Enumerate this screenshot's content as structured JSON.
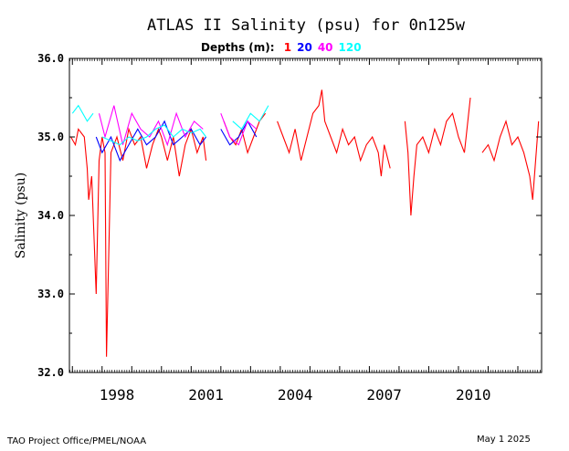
{
  "footer": {
    "left": "TAO Project Office/PMEL/NOAA",
    "right": "May  1 2025"
  },
  "chart_data": {
    "type": "line",
    "title": "ATLAS II Salinity (psu) for 0n125w",
    "legend_prefix": "Depths (m):",
    "ylabel": "Salinity (psu)",
    "xlabel": "",
    "ylim": [
      32.0,
      36.0
    ],
    "xlim": [
      1996.9,
      2012.8
    ],
    "x_ticks": [
      "1998",
      "2001",
      "2004",
      "2007",
      "2010"
    ],
    "y_ticks": [
      "36.0",
      "35.0",
      "34.0",
      "33.0",
      "32.0"
    ],
    "grid": false,
    "legend_position": "top-center",
    "series": [
      {
        "name": "1",
        "color": "#ff0000",
        "x": [
          1996.95,
          1997.1,
          1997.2,
          1997.4,
          1997.5,
          1997.55,
          1997.65,
          1997.8,
          1997.9,
          1998.0,
          1998.1,
          1998.15,
          1998.3,
          1998.5,
          1998.7,
          1998.9,
          1999.1,
          1999.3,
          1999.5,
          1999.7,
          1999.9,
          2000.0,
          2000.2,
          2000.4,
          2000.6,
          2000.8,
          2001.0,
          2001.2,
          2001.4,
          2001.5,
          null,
          2002.1,
          2002.3,
          2002.5,
          2002.7,
          2002.9,
          2003.1,
          2003.3,
          2003.5,
          null,
          2003.9,
          2004.1,
          2004.3,
          2004.5,
          2004.7,
          2004.9,
          2005.1,
          2005.3,
          2005.4,
          2005.5,
          2005.7,
          2005.9,
          2006.1,
          2006.3,
          2006.5,
          2006.7,
          2006.9,
          2007.1,
          2007.3,
          2007.4,
          2007.5,
          2007.7,
          null,
          2008.2,
          2008.3,
          2008.4,
          2008.5,
          2008.6,
          2008.8,
          2009.0,
          2009.2,
          2009.4,
          2009.6,
          2009.8,
          2010.0,
          2010.2,
          2010.4,
          null,
          2010.8,
          2011.0,
          2011.2,
          2011.4,
          2011.6,
          2011.8,
          2012.0,
          2012.2,
          2012.4,
          2012.5,
          2012.7
        ],
        "y": [
          35.0,
          34.9,
          35.1,
          35.0,
          34.6,
          34.2,
          34.5,
          33.0,
          34.7,
          35.0,
          34.8,
          32.2,
          34.8,
          35.0,
          34.7,
          35.1,
          34.9,
          35.0,
          34.6,
          34.9,
          35.1,
          35.0,
          34.7,
          35.0,
          34.5,
          34.9,
          35.1,
          34.8,
          35.0,
          34.7,
          null,
          35.2,
          35.0,
          34.9,
          35.1,
          34.8,
          35.0,
          35.2,
          35.3,
          null,
          35.2,
          35.0,
          34.8,
          35.1,
          34.7,
          35.0,
          35.3,
          35.4,
          35.6,
          35.2,
          35.0,
          34.8,
          35.1,
          34.9,
          35.0,
          34.7,
          34.9,
          35.0,
          34.8,
          34.5,
          34.9,
          34.6,
          null,
          35.2,
          34.8,
          34.0,
          34.5,
          34.9,
          35.0,
          34.8,
          35.1,
          34.9,
          35.2,
          35.3,
          35.0,
          34.8,
          35.5,
          null,
          34.8,
          34.9,
          34.7,
          35.0,
          35.2,
          34.9,
          35.0,
          34.8,
          34.5,
          34.2,
          35.2
        ]
      },
      {
        "name": "20",
        "color": "#0000ff",
        "x": [
          1997.8,
          1998.0,
          1998.3,
          1998.6,
          1998.9,
          1999.2,
          1999.5,
          1999.8,
          2000.1,
          2000.4,
          2000.7,
          2001.0,
          2001.3,
          2001.5,
          null,
          2002.0,
          2002.3,
          2002.6,
          2002.9,
          2003.2
        ],
        "y": [
          35.0,
          34.8,
          35.0,
          34.7,
          34.9,
          35.1,
          34.9,
          35.0,
          35.2,
          34.9,
          35.0,
          35.1,
          34.9,
          35.0,
          null,
          35.1,
          34.9,
          35.0,
          35.2,
          35.0
        ]
      },
      {
        "name": "40",
        "color": "#ff00ff",
        "x": [
          1997.9,
          1998.1,
          1998.4,
          1998.7,
          1999.0,
          1999.3,
          1999.6,
          1999.9,
          2000.2,
          2000.5,
          2000.8,
          2001.1,
          2001.4,
          null,
          2002.0,
          2002.3,
          2002.6,
          2002.9,
          2003.2
        ],
        "y": [
          35.3,
          35.0,
          35.4,
          34.9,
          35.3,
          35.1,
          35.0,
          35.2,
          34.9,
          35.3,
          35.0,
          35.2,
          35.1,
          null,
          35.3,
          35.0,
          34.9,
          35.2,
          35.1
        ]
      },
      {
        "name": "120",
        "color": "#00ffff",
        "x": [
          1997.0,
          1997.2,
          1997.5,
          1997.7,
          null,
          1998.0,
          1998.3,
          1998.6,
          1998.9,
          1999.2,
          1999.5,
          1999.8,
          2000.1,
          2000.4,
          2000.7,
          2001.0,
          2001.3,
          2001.5,
          null,
          2002.4,
          2002.7,
          2003.0,
          2003.3,
          2003.6
        ],
        "y": [
          35.3,
          35.4,
          35.2,
          35.3,
          null,
          35.0,
          34.95,
          34.9,
          35.0,
          34.95,
          35.0,
          35.1,
          35.15,
          35.0,
          35.1,
          35.05,
          35.1,
          35.0,
          null,
          35.2,
          35.1,
          35.3,
          35.2,
          35.4
        ]
      }
    ]
  }
}
